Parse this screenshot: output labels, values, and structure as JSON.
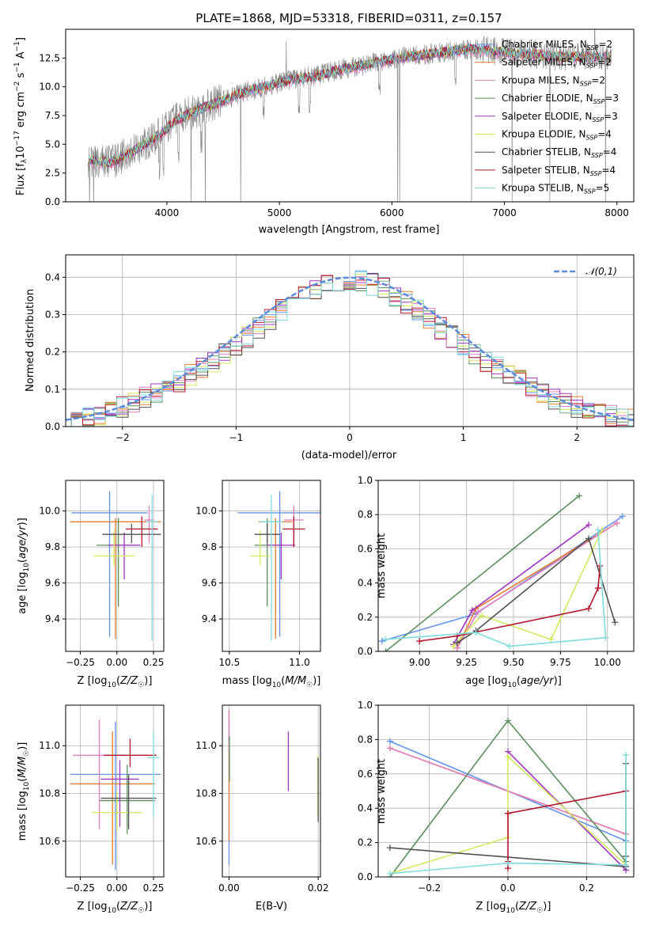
{
  "figure_title": "PLATE=1868, MJD=53318, FIBERID=0311, z=0.157",
  "colors": {
    "series": [
      "#6495ED",
      "#E87C31",
      "#E17FC1",
      "#5B8E5E",
      "#9F36C2",
      "#D4E85E",
      "#525252",
      "#B2182B",
      "#7FDCDD"
    ],
    "spectrum": "#808080",
    "normal_curve": "#5B8BD9",
    "grid": "#B0B0B0"
  },
  "legend_series": [
    {
      "pre": "Chabrier MILES, N",
      "sub": "SSP",
      "post": "=2"
    },
    {
      "pre": "Salpeter MILES, N",
      "sub": "SSP",
      "post": "=2"
    },
    {
      "pre": "Kroupa MILES, N",
      "sub": "SSP",
      "post": "=2"
    },
    {
      "pre": "Chabrier ELODIE, N",
      "sub": "SSP",
      "post": "=3"
    },
    {
      "pre": "Salpeter ELODIE, N",
      "sub": "SSP",
      "post": "=3"
    },
    {
      "pre": "Kroupa ELODIE, N",
      "sub": "SSP",
      "post": "=4"
    },
    {
      "pre": "Chabrier STELIB, N",
      "sub": "SSP",
      "post": "=4"
    },
    {
      "pre": "Salpeter STELIB, N",
      "sub": "SSP",
      "post": "=4"
    },
    {
      "pre": "Kroupa STELIB, N",
      "sub": "SSP",
      "post": "=5"
    }
  ],
  "chart_data": [
    {
      "id": "spectrum",
      "type": "line",
      "xlabel": "wavelength [Angstrom, rest frame]",
      "ylabel": "Flux [f_λ 10^-17 erg cm^-2 s^-1 A^-1]",
      "xlim": [
        3100,
        8150
      ],
      "ylim": [
        0,
        15
      ],
      "xticks": [
        4000,
        5000,
        6000,
        7000,
        8000
      ],
      "yticks": [
        0.0,
        2.5,
        5.0,
        7.5,
        10.0,
        12.5
      ],
      "model_continuum": {
        "x": [
          3300,
          3500,
          3700,
          3900,
          4100,
          4300,
          4500,
          4700,
          4900,
          5100,
          5300,
          5500,
          5700,
          5900,
          6100,
          6300,
          6500,
          6700,
          6900,
          7100,
          7300,
          7500
        ],
        "y": [
          3.6,
          3.4,
          4.4,
          5.6,
          7.2,
          8.1,
          8.8,
          9.6,
          10.1,
          10.6,
          10.9,
          11.4,
          11.8,
          12.2,
          12.6,
          12.8,
          13.1,
          13.3,
          13.1,
          12.9,
          12.8,
          12.6
        ]
      },
      "data_range": [
        3300,
        7950
      ],
      "grid": false
    },
    {
      "id": "residuals",
      "type": "histogram",
      "xlabel": "(data-model)/error",
      "ylabel": "Normed distribution",
      "xlim": [
        -2.5,
        2.5
      ],
      "ylim": [
        0,
        0.46
      ],
      "xticks": [
        -2,
        -1,
        0,
        1,
        2
      ],
      "yticks": [
        0.0,
        0.1,
        0.2,
        0.3,
        0.4
      ],
      "bin_width": 0.1,
      "legend": "𝒩(0,1)",
      "grid": true
    },
    {
      "id": "age_vs_Z",
      "type": "errorbar",
      "xlabel": "Z [log10(Z/Z☉)]",
      "ylabel": "age  [log10(age/yr)]",
      "xlim": [
        -0.35,
        0.32
      ],
      "ylim": [
        9.22,
        10.17
      ],
      "xticks": [
        -0.25,
        0.0,
        0.25
      ],
      "yticks": [
        9.4,
        9.6,
        9.8,
        10.0
      ],
      "points": [
        {
          "x": -0.05,
          "xerr": 0.26,
          "y": 9.99,
          "yerr": [
            0.69,
            0.12
          ]
        },
        {
          "x": -0.01,
          "xerr": 0.31,
          "y": 9.94,
          "yerr": [
            0.65,
            0.02
          ]
        },
        {
          "x": 0.22,
          "xerr": 0.03,
          "y": 9.95,
          "yerr": [
            0.13,
            0.08
          ]
        },
        {
          "x": 0.01,
          "xerr": 0.15,
          "y": 9.81,
          "yerr": [
            0.34,
            0.15
          ]
        },
        {
          "x": 0.05,
          "xerr": 0.11,
          "y": 9.81,
          "yerr": [
            0.19,
            0.07
          ]
        },
        {
          "x": -0.02,
          "xerr": 0.14,
          "y": 9.75,
          "yerr": [
            0.05,
            0.14
          ]
        },
        {
          "x": 0.1,
          "xerr": 0.2,
          "y": 9.87,
          "yerr": [
            0.05,
            0.06
          ]
        },
        {
          "x": 0.17,
          "xerr": 0.11,
          "y": 9.9,
          "yerr": [
            0.1,
            0.07
          ]
        },
        {
          "x": 0.24,
          "xerr": 0.04,
          "y": 9.94,
          "yerr": [
            0.66,
            0.15
          ]
        }
      ],
      "grid": true
    },
    {
      "id": "age_vs_mass",
      "type": "errorbar",
      "xlabel": "mass [log10(M/M☉)]",
      "ylabel": "",
      "xlim": [
        10.45,
        11.15
      ],
      "ylim": [
        9.22,
        10.17
      ],
      "xticks": [
        10.5,
        11.0
      ],
      "yticks": [
        9.4,
        9.6,
        9.8,
        10.0
      ],
      "points": [
        {
          "x": 10.86,
          "xerr": 0.3,
          "y": 9.99,
          "yerr": [
            0.69,
            0.12
          ]
        },
        {
          "x": 10.83,
          "xerr": 0.12,
          "y": 9.94,
          "yerr": [
            0.65,
            0.02
          ]
        },
        {
          "x": 10.96,
          "xerr": 0.07,
          "y": 9.95,
          "yerr": [
            0.13,
            0.08
          ]
        },
        {
          "x": 10.77,
          "xerr": 0.09,
          "y": 9.81,
          "yerr": [
            0.34,
            0.15
          ]
        },
        {
          "x": 10.87,
          "xerr": 0.1,
          "y": 9.81,
          "yerr": [
            0.19,
            0.07
          ]
        },
        {
          "x": 10.72,
          "xerr": 0.07,
          "y": 9.75,
          "yerr": [
            0.05,
            0.14
          ]
        },
        {
          "x": 10.77,
          "xerr": 0.09,
          "y": 9.87,
          "yerr": [
            0.05,
            0.06
          ]
        },
        {
          "x": 10.96,
          "xerr": 0.08,
          "y": 9.9,
          "yerr": [
            0.1,
            0.07
          ]
        },
        {
          "x": 10.8,
          "xerr": 0.08,
          "y": 9.94,
          "yerr": [
            0.66,
            0.15
          ]
        }
      ],
      "grid": true
    },
    {
      "id": "weight_vs_age",
      "type": "line",
      "xlabel": "age  [log10(age/yr)]",
      "ylabel": "mass weight",
      "xlim": [
        8.78,
        10.14
      ],
      "ylim": [
        0,
        1
      ],
      "xticks": [
        9.0,
        9.25,
        9.5,
        9.75,
        10.0
      ],
      "yticks": [
        0.0,
        0.2,
        0.4,
        0.6,
        0.8,
        1.0
      ],
      "series": [
        {
          "x": [
            8.8,
            9.3,
            10.08
          ],
          "y": [
            0.06,
            0.22,
            0.79
          ]
        },
        {
          "x": [
            9.2,
            9.3,
            10.05
          ],
          "y": [
            0.02,
            0.25,
            0.75
          ]
        },
        {
          "x": [
            9.2,
            9.31,
            10.05
          ],
          "y": [
            0.02,
            0.23,
            0.75
          ]
        },
        {
          "x": [
            8.82,
            9.85
          ],
          "y": [
            0.0,
            0.91
          ]
        },
        {
          "x": [
            9.18,
            9.28,
            9.9
          ],
          "y": [
            0.04,
            0.24,
            0.74
          ]
        },
        {
          "x": [
            9.18,
            9.33,
            9.7,
            9.97
          ],
          "y": [
            0.03,
            0.21,
            0.07,
            0.71
          ]
        },
        {
          "x": [
            9.2,
            9.3,
            9.9,
            10.04
          ],
          "y": [
            0.05,
            0.12,
            0.66,
            0.17
          ]
        },
        {
          "x": [
            9.0,
            9.2,
            9.9,
            9.95,
            9.96
          ],
          "y": [
            0.06,
            0.09,
            0.25,
            0.37,
            0.5
          ]
        },
        {
          "x": [
            8.82,
            9.3,
            9.48,
            9.99,
            9.95
          ],
          "y": [
            0.07,
            0.11,
            0.03,
            0.08,
            0.71
          ]
        }
      ],
      "grid": true
    },
    {
      "id": "mass_vs_Z",
      "type": "errorbar",
      "xlabel": "Z [log10(Z/Z☉)]",
      "ylabel": "mass [log10(M/M☉)]",
      "xlim": [
        -0.35,
        0.32
      ],
      "ylim": [
        10.45,
        11.17
      ],
      "xticks": [
        -0.25,
        0.0,
        0.25
      ],
      "yticks": [
        10.6,
        10.8,
        11.0
      ],
      "points": [
        {
          "x": -0.01,
          "xerr": 0.31,
          "y": 10.88,
          "yerr": [
            0.4,
            0.22
          ]
        },
        {
          "x": -0.03,
          "xerr": 0.29,
          "y": 10.84,
          "yerr": [
            0.34,
            0.22
          ]
        },
        {
          "x": -0.12,
          "xerr": 0.18,
          "y": 10.96,
          "yerr": [
            0.31,
            0.15
          ]
        },
        {
          "x": 0.07,
          "xerr": 0.19,
          "y": 10.77,
          "yerr": [
            0.14,
            0.15
          ]
        },
        {
          "x": 0.02,
          "xerr": 0.13,
          "y": 10.86,
          "yerr": [
            0.2,
            0.08
          ]
        },
        {
          "x": 0.0,
          "xerr": 0.17,
          "y": 10.72,
          "yerr": [
            0.08,
            0.09
          ]
        },
        {
          "x": 0.08,
          "xerr": 0.19,
          "y": 10.78,
          "yerr": [
            0.13,
            0.1
          ]
        },
        {
          "x": 0.09,
          "xerr": 0.18,
          "y": 10.96,
          "yerr": [
            0.05,
            0.07
          ]
        },
        {
          "x": 0.25,
          "xerr": 0.04,
          "y": 10.95,
          "yerr": [
            0.25,
            0.11
          ]
        }
      ],
      "grid": true
    },
    {
      "id": "mass_vs_ebv",
      "type": "errorbar",
      "xlabel": "E(B-V)",
      "ylabel": "",
      "xlim": [
        -0.0015,
        0.0205
      ],
      "ylim": [
        10.45,
        11.17
      ],
      "xticks": [
        0.0,
        0.02
      ],
      "yticks": [
        10.6,
        10.8,
        11.0
      ],
      "points": [
        {
          "x": 0.0,
          "y": 10.7,
          "yerr": [
            0.2,
            0.4
          ]
        },
        {
          "x": 0.0,
          "y": 10.85,
          "yerr": [
            0.25,
            0.3
          ]
        },
        {
          "x": 0.0,
          "y": 11.05,
          "yerr": [
            0.08,
            0.1
          ]
        },
        {
          "x": 0.0001,
          "y": 10.96,
          "yerr": [
            0.11,
            0.08
          ]
        },
        {
          "x": 0.0133,
          "y": 10.93,
          "yerr": [
            0.12,
            0.13
          ]
        },
        {
          "x": 0.0199,
          "y": 10.82,
          "yerr": [
            0.12,
            0.14
          ]
        },
        {
          "x": 0.02,
          "y": 10.78,
          "yerr": [
            0.1,
            0.17
          ]
        }
      ],
      "grid": true
    },
    {
      "id": "weight_vs_Z",
      "type": "line",
      "xlabel": "Z [log10(Z/Z☉)]",
      "ylabel": "mass weight",
      "xlim": [
        -0.33,
        0.32
      ],
      "ylim": [
        0,
        1
      ],
      "xticks": [
        -0.2,
        0.0,
        0.2
      ],
      "yticks": [
        0.0,
        0.2,
        0.4,
        0.6,
        0.8,
        1.0
      ],
      "series": [
        {
          "x": [
            -0.3,
            0.3
          ],
          "y": [
            0.79,
            0.21
          ]
        },
        {
          "x": [
            -0.3,
            0.3
          ],
          "y": [
            0.75,
            0.25
          ]
        },
        {
          "x": [
            -0.3,
            0.3
          ],
          "y": [
            0.75,
            0.25
          ]
        },
        {
          "x": [
            -0.3,
            0.0,
            0.3
          ],
          "y": [
            0.0,
            0.91,
            0.09
          ]
        },
        {
          "x": [
            0.0,
            0.3
          ],
          "y": [
            0.73,
            0.04
          ]
        },
        {
          "x": [
            -0.3,
            0.0,
            0.0,
            0.3
          ],
          "y": [
            0.02,
            0.23,
            0.7,
            0.07
          ]
        },
        {
          "x": [
            -0.3,
            0.3,
            0.3,
            0.3
          ],
          "y": [
            0.17,
            0.06,
            0.12,
            0.66
          ]
        },
        {
          "x": [
            0.0,
            0.0,
            0.0,
            0.3
          ],
          "y": [
            0.05,
            0.09,
            0.37,
            0.5
          ]
        },
        {
          "x": [
            -0.3,
            0.0,
            0.3,
            0.3
          ],
          "y": [
            0.02,
            0.08,
            0.07,
            0.71
          ]
        }
      ],
      "grid": true
    }
  ]
}
